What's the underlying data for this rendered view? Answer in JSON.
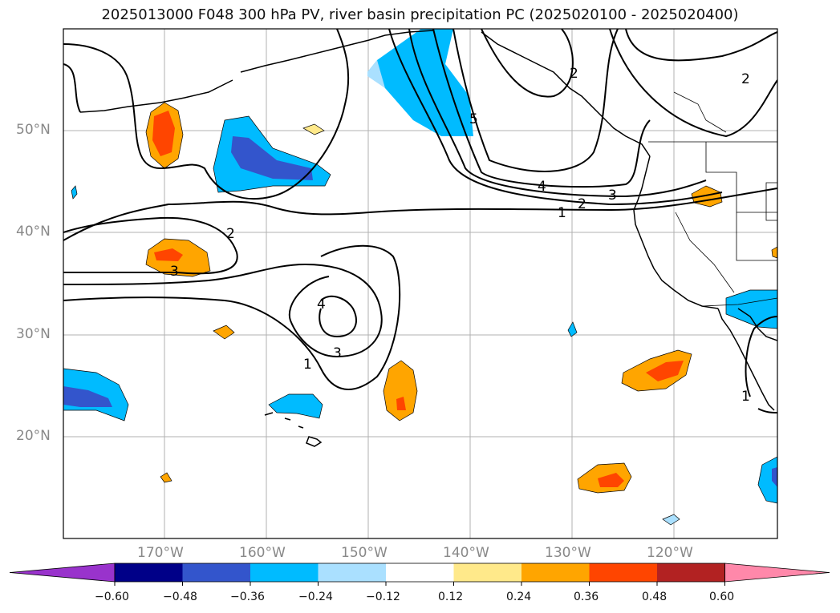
{
  "title": "2025013000 F048 300 hPa PV, river basin precipitation PC (2025020100 - 2025020400)",
  "lat_labels": [
    "50°N",
    "40°N",
    "30°N",
    "20°N"
  ],
  "lon_labels": [
    "170°W",
    "160°W",
    "150°W",
    "140°W",
    "130°W",
    "120°W"
  ],
  "contour_labels": [
    "5",
    "4",
    "3",
    "2",
    "1",
    "2",
    "3",
    "4",
    "3",
    "1",
    "2",
    "1",
    "2"
  ],
  "colorbar": {
    "ticks": [
      "−0.60",
      "−0.48",
      "−0.36",
      "−0.24",
      "−0.12",
      "0.12",
      "0.24",
      "0.36",
      "0.48",
      "0.60"
    ],
    "colors": [
      "#9933cc",
      "#000088",
      "#3355cc",
      "#00bbff",
      "#aae0ff",
      "#ffffff",
      "#ffe98a",
      "#ffa500",
      "#ff4500",
      "#b22222",
      "#ff88aa"
    ]
  },
  "colors": {
    "neg_light": "#aae0ff",
    "neg_mid": "#00bbff",
    "neg_dark": "#3355cc",
    "pos_light": "#ffe98a",
    "pos_mid": "#ffa500",
    "pos_dark": "#ff4500",
    "gridline": "#b0b0b0",
    "contour": "#000000"
  }
}
